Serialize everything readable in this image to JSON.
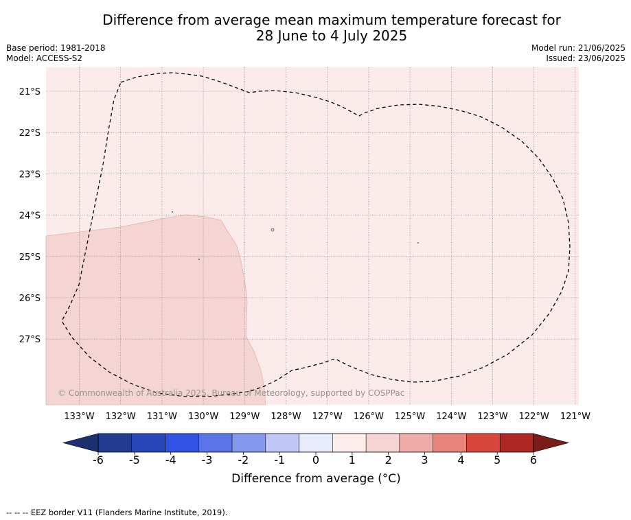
{
  "header": {
    "title_line1": "Difference from average mean maximum temperature forecast for",
    "title_line2": "28 June to 4 July 2025",
    "base_period": "Base period: 1981-2018",
    "model": "Model: ACCESS-S2",
    "model_run": "Model run: 21/06/2025",
    "issued": "Issued: 23/06/2025"
  },
  "map": {
    "latitude_labels": [
      "21°S",
      "22°S",
      "23°S",
      "24°S",
      "25°S",
      "26°S",
      "27°S"
    ],
    "longitude_labels": [
      "133°W",
      "132°W",
      "131°W",
      "130°W",
      "129°W",
      "128°W",
      "127°W",
      "126°W",
      "125°W",
      "124°W",
      "123°W",
      "122°W",
      "121°W"
    ],
    "copyright": "© Commonwealth of Australia 2025, Bureau of Meteorology, supported by COSPPac",
    "colors": {
      "background_anomaly": "#fbeceb",
      "warmer_region": "#f5d5d4",
      "eez_border": "#000000",
      "gridline": "#8a6d80"
    }
  },
  "colorbar": {
    "ticks": [
      "-6",
      "-5",
      "-4",
      "-3",
      "-2",
      "-1",
      "0",
      "1",
      "2",
      "3",
      "4",
      "5",
      "6"
    ],
    "colors": [
      "#233b8f",
      "#2746b8",
      "#3152e2",
      "#5b74e6",
      "#8598ee",
      "#bec7f5",
      "#e8ebfb",
      "#fdeeeb",
      "#f5d5d4",
      "#efaca7",
      "#e8847c",
      "#d9463c",
      "#ad2822"
    ],
    "under_color": "#1c2f70",
    "over_color": "#7a1c18",
    "label": "Difference from average (°C)"
  },
  "footnote": "--  --  -- EEZ border V11 (Flanders Marine Institute, 2019)."
}
